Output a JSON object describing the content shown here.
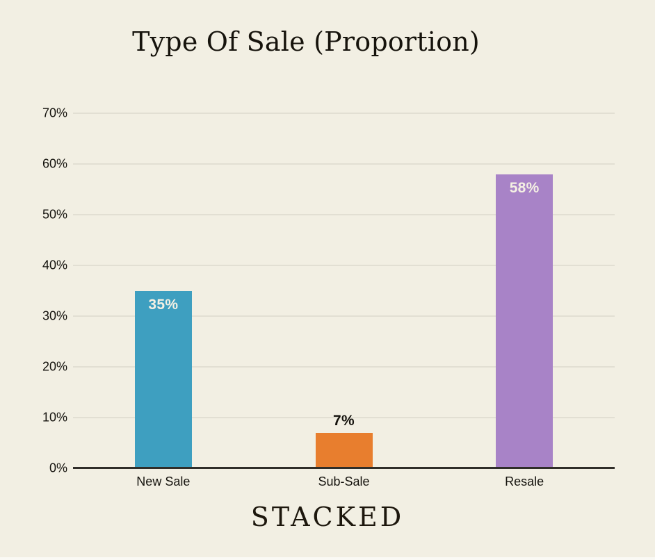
{
  "chart_data": {
    "type": "bar",
    "title": "Type Of Sale (Proportion)",
    "categories": [
      "New Sale",
      "Sub-Sale",
      "Resale"
    ],
    "values": [
      35,
      7,
      58
    ],
    "bars": [
      {
        "category": "New Sale",
        "value": 35,
        "display": "35%",
        "color": "#3E9FC0",
        "value_label_inside": true,
        "value_label_color": "#F4F0E3"
      },
      {
        "category": "Sub-Sale",
        "value": 7,
        "display": "7%",
        "color": "#E87E2E",
        "value_label_inside": false,
        "value_label_color": "#14120D"
      },
      {
        "category": "Resale",
        "value": 58,
        "display": "58%",
        "color": "#A883C7",
        "value_label_inside": true,
        "value_label_color": "#F4F0E3"
      }
    ],
    "y_axis": {
      "min": 0,
      "max": 70,
      "grid": true,
      "ticks": [
        {
          "label": "0%",
          "value": 0
        },
        {
          "label": "10%",
          "value": 10
        },
        {
          "label": "20%",
          "value": 20
        },
        {
          "label": "30%",
          "value": 30
        },
        {
          "label": "40%",
          "value": 40
        },
        {
          "label": "50%",
          "value": 50
        },
        {
          "label": "60%",
          "value": 60
        },
        {
          "label": "70%",
          "value": 70
        }
      ]
    },
    "xlabel": "",
    "ylabel": "",
    "legend": null
  },
  "footer": {
    "logo_text": "STACKED"
  },
  "colors": {
    "background": "#F2EFE3",
    "gridline": "#E2DFD3",
    "axis_line": "#302E29",
    "text": "#14120D",
    "title": "#16130C",
    "bar_blue": "#3E9FC0",
    "bar_orange": "#E87E2E",
    "bar_purple": "#A883C7"
  }
}
